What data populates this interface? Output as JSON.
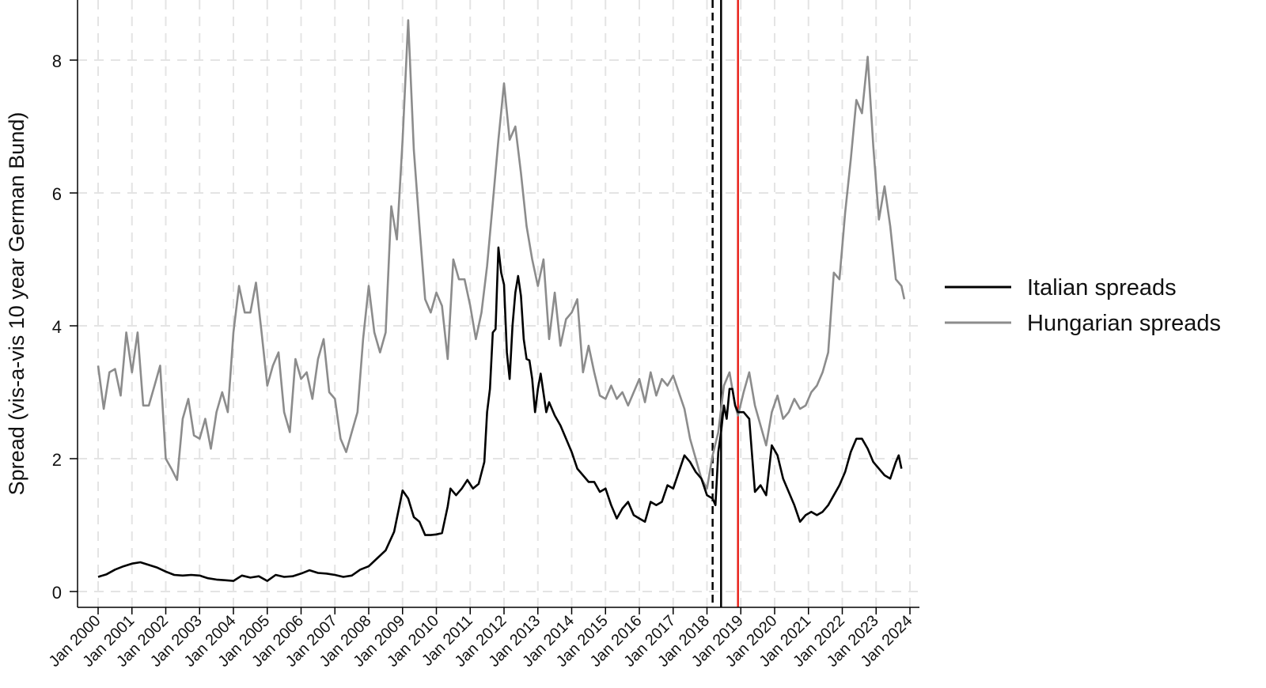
{
  "chart_data": {
    "type": "line",
    "ylabel": "Spread (vis-a-vis 10 year German Bund)",
    "xlabel": "",
    "ylim": [
      0,
      8.8
    ],
    "yticks": [
      0,
      2,
      4,
      6,
      8
    ],
    "x_ticks": [
      "Jan 2000",
      "Jan 2001",
      "Jan 2002",
      "Jan 2003",
      "Jan 2004",
      "Jan 2005",
      "Jan 2006",
      "Jan 2007",
      "Jan 2008",
      "Jan 2009",
      "Jan 2010",
      "Jan 2011",
      "Jan 2012",
      "Jan 2013",
      "Jan 2014",
      "Jan 2015",
      "Jan 2016",
      "Jan 2017",
      "Jan 2018",
      "Jan 2019",
      "Jan 2020",
      "Jan 2021",
      "Jan 2022",
      "Jan 2023",
      "Jan 2024"
    ],
    "grid": true,
    "legend_position": "right",
    "series": [
      {
        "name": "Italian spreads",
        "color": "#000000",
        "points": [
          [
            "2000-01",
            0.22
          ],
          [
            "2000-04",
            0.26
          ],
          [
            "2000-07",
            0.33
          ],
          [
            "2000-10",
            0.38
          ],
          [
            "2001-01",
            0.42
          ],
          [
            "2001-04",
            0.44
          ],
          [
            "2001-07",
            0.4
          ],
          [
            "2001-10",
            0.36
          ],
          [
            "2002-01",
            0.3
          ],
          [
            "2002-04",
            0.25
          ],
          [
            "2002-07",
            0.24
          ],
          [
            "2002-10",
            0.25
          ],
          [
            "2003-01",
            0.24
          ],
          [
            "2003-04",
            0.2
          ],
          [
            "2003-07",
            0.18
          ],
          [
            "2003-10",
            0.17
          ],
          [
            "2004-01",
            0.16
          ],
          [
            "2004-04",
            0.24
          ],
          [
            "2004-07",
            0.21
          ],
          [
            "2004-10",
            0.23
          ],
          [
            "2005-01",
            0.16
          ],
          [
            "2005-04",
            0.25
          ],
          [
            "2005-07",
            0.22
          ],
          [
            "2005-10",
            0.23
          ],
          [
            "2006-01",
            0.27
          ],
          [
            "2006-04",
            0.32
          ],
          [
            "2006-07",
            0.28
          ],
          [
            "2006-10",
            0.27
          ],
          [
            "2007-01",
            0.25
          ],
          [
            "2007-04",
            0.22
          ],
          [
            "2007-07",
            0.24
          ],
          [
            "2007-10",
            0.33
          ],
          [
            "2008-01",
            0.38
          ],
          [
            "2008-04",
            0.5
          ],
          [
            "2008-07",
            0.62
          ],
          [
            "2008-10",
            0.9
          ],
          [
            "2009-01",
            1.52
          ],
          [
            "2009-03",
            1.4
          ],
          [
            "2009-05",
            1.12
          ],
          [
            "2009-07",
            1.05
          ],
          [
            "2009-09",
            0.85
          ],
          [
            "2009-11",
            0.85
          ],
          [
            "2010-01",
            0.86
          ],
          [
            "2010-03",
            0.88
          ],
          [
            "2010-05",
            1.28
          ],
          [
            "2010-06",
            1.55
          ],
          [
            "2010-08",
            1.45
          ],
          [
            "2010-10",
            1.55
          ],
          [
            "2010-12",
            1.68
          ],
          [
            "2011-02",
            1.55
          ],
          [
            "2011-04",
            1.62
          ],
          [
            "2011-06",
            1.95
          ],
          [
            "2011-07",
            2.7
          ],
          [
            "2011-08",
            3.05
          ],
          [
            "2011-09",
            3.9
          ],
          [
            "2011-10",
            3.95
          ],
          [
            "2011-11",
            5.18
          ],
          [
            "2011-12",
            4.8
          ],
          [
            "2012-01",
            4.62
          ],
          [
            "2012-02",
            3.6
          ],
          [
            "2012-03",
            3.2
          ],
          [
            "2012-04",
            4.0
          ],
          [
            "2012-05",
            4.5
          ],
          [
            "2012-06",
            4.75
          ],
          [
            "2012-07",
            4.45
          ],
          [
            "2012-08",
            3.8
          ],
          [
            "2012-09",
            3.5
          ],
          [
            "2012-10",
            3.48
          ],
          [
            "2012-11",
            3.2
          ],
          [
            "2012-12",
            2.7
          ],
          [
            "2013-01",
            3.05
          ],
          [
            "2013-02",
            3.28
          ],
          [
            "2013-04",
            2.7
          ],
          [
            "2013-05",
            2.85
          ],
          [
            "2013-07",
            2.65
          ],
          [
            "2013-09",
            2.5
          ],
          [
            "2013-11",
            2.3
          ],
          [
            "2014-01",
            2.1
          ],
          [
            "2014-03",
            1.85
          ],
          [
            "2014-05",
            1.75
          ],
          [
            "2014-07",
            1.65
          ],
          [
            "2014-09",
            1.65
          ],
          [
            "2014-11",
            1.5
          ],
          [
            "2015-01",
            1.55
          ],
          [
            "2015-03",
            1.3
          ],
          [
            "2015-05",
            1.1
          ],
          [
            "2015-07",
            1.25
          ],
          [
            "2015-09",
            1.35
          ],
          [
            "2015-11",
            1.15
          ],
          [
            "2016-01",
            1.1
          ],
          [
            "2016-03",
            1.05
          ],
          [
            "2016-05",
            1.35
          ],
          [
            "2016-07",
            1.3
          ],
          [
            "2016-09",
            1.35
          ],
          [
            "2016-11",
            1.6
          ],
          [
            "2017-01",
            1.55
          ],
          [
            "2017-03",
            1.8
          ],
          [
            "2017-05",
            2.05
          ],
          [
            "2017-07",
            1.95
          ],
          [
            "2017-09",
            1.8
          ],
          [
            "2017-11",
            1.7
          ],
          [
            "2018-01",
            1.45
          ],
          [
            "2018-03",
            1.4
          ],
          [
            "2018-04",
            1.3
          ],
          [
            "2018-05",
            2.1
          ],
          [
            "2018-06",
            2.4
          ],
          [
            "2018-07",
            2.8
          ],
          [
            "2018-08",
            2.6
          ],
          [
            "2018-09",
            3.05
          ],
          [
            "2018-10",
            3.05
          ],
          [
            "2018-11",
            2.8
          ],
          [
            "2018-12",
            2.7
          ],
          [
            "2019-02",
            2.7
          ],
          [
            "2019-04",
            2.6
          ],
          [
            "2019-05",
            2.05
          ],
          [
            "2019-06",
            1.5
          ],
          [
            "2019-08",
            1.6
          ],
          [
            "2019-10",
            1.45
          ],
          [
            "2019-12",
            2.2
          ],
          [
            "2020-02",
            2.05
          ],
          [
            "2020-04",
            1.7
          ],
          [
            "2020-06",
            1.5
          ],
          [
            "2020-08",
            1.3
          ],
          [
            "2020-10",
            1.05
          ],
          [
            "2020-12",
            1.15
          ],
          [
            "2021-02",
            1.2
          ],
          [
            "2021-04",
            1.15
          ],
          [
            "2021-06",
            1.2
          ],
          [
            "2021-08",
            1.3
          ],
          [
            "2021-10",
            1.45
          ],
          [
            "2021-12",
            1.6
          ],
          [
            "2022-02",
            1.8
          ],
          [
            "2022-04",
            2.1
          ],
          [
            "2022-06",
            2.3
          ],
          [
            "2022-08",
            2.3
          ],
          [
            "2022-10",
            2.15
          ],
          [
            "2022-12",
            1.95
          ],
          [
            "2023-02",
            1.85
          ],
          [
            "2023-04",
            1.75
          ],
          [
            "2023-06",
            1.7
          ],
          [
            "2023-08",
            1.95
          ],
          [
            "2023-09",
            2.05
          ],
          [
            "2023-10",
            1.85
          ]
        ]
      },
      {
        "name": "Hungarian spreads",
        "color": "#8c8c8c",
        "points": [
          [
            "2000-01",
            3.4
          ],
          [
            "2000-03",
            2.75
          ],
          [
            "2000-05",
            3.3
          ],
          [
            "2000-07",
            3.35
          ],
          [
            "2000-09",
            2.95
          ],
          [
            "2000-11",
            3.9
          ],
          [
            "2001-01",
            3.3
          ],
          [
            "2001-03",
            3.9
          ],
          [
            "2001-05",
            2.8
          ],
          [
            "2001-07",
            2.8
          ],
          [
            "2001-09",
            3.1
          ],
          [
            "2001-11",
            3.4
          ],
          [
            "2002-01",
            2.0
          ],
          [
            "2002-03",
            1.85
          ],
          [
            "2002-05",
            1.68
          ],
          [
            "2002-07",
            2.6
          ],
          [
            "2002-09",
            2.9
          ],
          [
            "2002-11",
            2.35
          ],
          [
            "2003-01",
            2.3
          ],
          [
            "2003-03",
            2.6
          ],
          [
            "2003-05",
            2.15
          ],
          [
            "2003-07",
            2.7
          ],
          [
            "2003-09",
            3.0
          ],
          [
            "2003-11",
            2.7
          ],
          [
            "2004-01",
            3.9
          ],
          [
            "2004-03",
            4.6
          ],
          [
            "2004-05",
            4.2
          ],
          [
            "2004-07",
            4.2
          ],
          [
            "2004-09",
            4.65
          ],
          [
            "2004-11",
            3.9
          ],
          [
            "2005-01",
            3.1
          ],
          [
            "2005-03",
            3.4
          ],
          [
            "2005-05",
            3.6
          ],
          [
            "2005-07",
            2.7
          ],
          [
            "2005-09",
            2.4
          ],
          [
            "2005-11",
            3.5
          ],
          [
            "2006-01",
            3.2
          ],
          [
            "2006-03",
            3.3
          ],
          [
            "2006-05",
            2.9
          ],
          [
            "2006-07",
            3.5
          ],
          [
            "2006-09",
            3.8
          ],
          [
            "2006-11",
            3.0
          ],
          [
            "2007-01",
            2.9
          ],
          [
            "2007-03",
            2.3
          ],
          [
            "2007-05",
            2.1
          ],
          [
            "2007-07",
            2.4
          ],
          [
            "2007-09",
            2.7
          ],
          [
            "2007-11",
            3.8
          ],
          [
            "2008-01",
            4.6
          ],
          [
            "2008-03",
            3.9
          ],
          [
            "2008-05",
            3.6
          ],
          [
            "2008-07",
            3.9
          ],
          [
            "2008-09",
            5.8
          ],
          [
            "2008-11",
            5.3
          ],
          [
            "2009-01",
            6.8
          ],
          [
            "2009-03",
            8.6
          ],
          [
            "2009-05",
            6.65
          ],
          [
            "2009-07",
            5.5
          ],
          [
            "2009-09",
            4.4
          ],
          [
            "2009-11",
            4.2
          ],
          [
            "2010-01",
            4.5
          ],
          [
            "2010-03",
            4.3
          ],
          [
            "2010-05",
            3.5
          ],
          [
            "2010-07",
            5.0
          ],
          [
            "2010-09",
            4.7
          ],
          [
            "2010-11",
            4.7
          ],
          [
            "2011-01",
            4.3
          ],
          [
            "2011-03",
            3.8
          ],
          [
            "2011-05",
            4.2
          ],
          [
            "2011-07",
            4.9
          ],
          [
            "2011-09",
            5.85
          ],
          [
            "2011-11",
            6.8
          ],
          [
            "2012-01",
            7.65
          ],
          [
            "2012-03",
            6.8
          ],
          [
            "2012-05",
            7.0
          ],
          [
            "2012-07",
            6.3
          ],
          [
            "2012-09",
            5.5
          ],
          [
            "2012-11",
            5.0
          ],
          [
            "2013-01",
            4.6
          ],
          [
            "2013-03",
            5.0
          ],
          [
            "2013-05",
            3.8
          ],
          [
            "2013-07",
            4.5
          ],
          [
            "2013-09",
            3.7
          ],
          [
            "2013-11",
            4.1
          ],
          [
            "2014-01",
            4.2
          ],
          [
            "2014-03",
            4.4
          ],
          [
            "2014-05",
            3.3
          ],
          [
            "2014-07",
            3.7
          ],
          [
            "2014-09",
            3.3
          ],
          [
            "2014-11",
            2.95
          ],
          [
            "2015-01",
            2.9
          ],
          [
            "2015-03",
            3.1
          ],
          [
            "2015-05",
            2.9
          ],
          [
            "2015-07",
            3.0
          ],
          [
            "2015-09",
            2.8
          ],
          [
            "2015-11",
            3.0
          ],
          [
            "2016-01",
            3.2
          ],
          [
            "2016-03",
            2.85
          ],
          [
            "2016-05",
            3.3
          ],
          [
            "2016-07",
            2.95
          ],
          [
            "2016-09",
            3.2
          ],
          [
            "2016-11",
            3.1
          ],
          [
            "2017-01",
            3.25
          ],
          [
            "2017-03",
            3.0
          ],
          [
            "2017-05",
            2.75
          ],
          [
            "2017-07",
            2.3
          ],
          [
            "2017-09",
            2.0
          ],
          [
            "2017-11",
            1.7
          ],
          [
            "2018-01",
            1.55
          ],
          [
            "2018-03",
            2.05
          ],
          [
            "2018-05",
            2.4
          ],
          [
            "2018-07",
            3.1
          ],
          [
            "2018-09",
            3.3
          ],
          [
            "2018-11",
            2.8
          ],
          [
            "2018-12",
            2.65
          ],
          [
            "2019-02",
            3.0
          ],
          [
            "2019-04",
            3.3
          ],
          [
            "2019-06",
            2.8
          ],
          [
            "2019-08",
            2.5
          ],
          [
            "2019-10",
            2.2
          ],
          [
            "2019-12",
            2.7
          ],
          [
            "2020-02",
            2.95
          ],
          [
            "2020-04",
            2.6
          ],
          [
            "2020-06",
            2.7
          ],
          [
            "2020-08",
            2.9
          ],
          [
            "2020-10",
            2.75
          ],
          [
            "2020-12",
            2.8
          ],
          [
            "2021-02",
            3.0
          ],
          [
            "2021-04",
            3.1
          ],
          [
            "2021-06",
            3.3
          ],
          [
            "2021-08",
            3.6
          ],
          [
            "2021-10",
            4.8
          ],
          [
            "2021-12",
            4.7
          ],
          [
            "2022-02",
            5.7
          ],
          [
            "2022-04",
            6.5
          ],
          [
            "2022-06",
            7.4
          ],
          [
            "2022-08",
            7.2
          ],
          [
            "2022-10",
            8.05
          ],
          [
            "2022-12",
            6.7
          ],
          [
            "2023-02",
            5.6
          ],
          [
            "2023-04",
            6.1
          ],
          [
            "2023-06",
            5.5
          ],
          [
            "2023-08",
            4.7
          ],
          [
            "2023-10",
            4.6
          ],
          [
            "2023-11",
            4.4
          ]
        ]
      }
    ],
    "vertical_lines": [
      {
        "date": "2018-03",
        "color": "#000000",
        "style": "dashed"
      },
      {
        "date": "2018-06",
        "color": "#000000",
        "style": "solid"
      },
      {
        "date": "2018-12",
        "color": "#e8221b",
        "style": "solid"
      }
    ]
  }
}
